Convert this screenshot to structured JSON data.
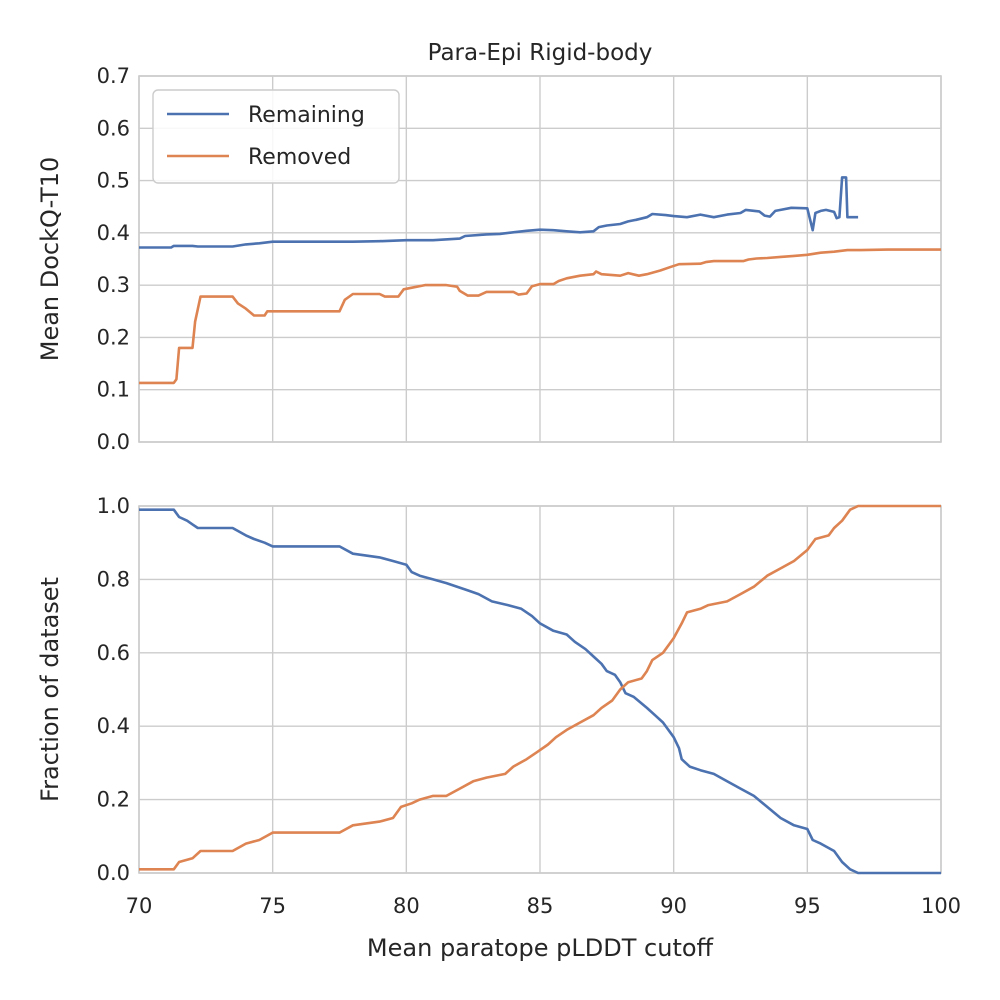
{
  "chart_data": [
    {
      "type": "line",
      "title": "Para-Epi Rigid-body",
      "xlabel": "",
      "ylabel": "Mean DockQ-T10",
      "xlim": [
        70,
        100
      ],
      "ylim": [
        0,
        0.7
      ],
      "xticks": [
        70,
        75,
        80,
        85,
        90,
        95,
        100
      ],
      "yticks": [
        "0.0",
        "0.1",
        "0.2",
        "0.3",
        "0.4",
        "0.5",
        "0.6",
        "0.7"
      ],
      "show_xtick_labels": false,
      "grid": true,
      "legend": {
        "position": "top-left",
        "entries": [
          "Remaining",
          "Removed"
        ]
      },
      "series": [
        {
          "name": "Remaining",
          "color": "#4c72b0",
          "points": [
            [
              70,
              0.372
            ],
            [
              71.2,
              0.372
            ],
            [
              71.3,
              0.375
            ],
            [
              72,
              0.375
            ],
            [
              72.2,
              0.374
            ],
            [
              73.5,
              0.374
            ],
            [
              74,
              0.378
            ],
            [
              74.5,
              0.38
            ],
            [
              75,
              0.383
            ],
            [
              76,
              0.383
            ],
            [
              77,
              0.383
            ],
            [
              78,
              0.383
            ],
            [
              79,
              0.384
            ],
            [
              80,
              0.386
            ],
            [
              81,
              0.386
            ],
            [
              82,
              0.389
            ],
            [
              82.2,
              0.394
            ],
            [
              83,
              0.397
            ],
            [
              83.5,
              0.398
            ],
            [
              84,
              0.401
            ],
            [
              84.5,
              0.404
            ],
            [
              85,
              0.406
            ],
            [
              85.5,
              0.405
            ],
            [
              86,
              0.403
            ],
            [
              86.5,
              0.401
            ],
            [
              87,
              0.403
            ],
            [
              87.2,
              0.411
            ],
            [
              87.5,
              0.414
            ],
            [
              88,
              0.417
            ],
            [
              88.3,
              0.422
            ],
            [
              88.6,
              0.425
            ],
            [
              89,
              0.43
            ],
            [
              89.2,
              0.436
            ],
            [
              89.7,
              0.434
            ],
            [
              90,
              0.432
            ],
            [
              90.5,
              0.43
            ],
            [
              91,
              0.435
            ],
            [
              91.5,
              0.43
            ],
            [
              92,
              0.435
            ],
            [
              92.5,
              0.438
            ],
            [
              92.7,
              0.444
            ],
            [
              93.2,
              0.441
            ],
            [
              93.4,
              0.433
            ],
            [
              93.6,
              0.431
            ],
            [
              93.8,
              0.442
            ],
            [
              94,
              0.444
            ],
            [
              94.4,
              0.448
            ],
            [
              95,
              0.447
            ],
            [
              95.2,
              0.405
            ],
            [
              95.3,
              0.438
            ],
            [
              95.5,
              0.442
            ],
            [
              95.7,
              0.444
            ],
            [
              96,
              0.44
            ],
            [
              96.1,
              0.428
            ],
            [
              96.2,
              0.43
            ],
            [
              96.3,
              0.506
            ],
            [
              96.45,
              0.506
            ],
            [
              96.5,
              0.43
            ],
            [
              96.9,
              0.43
            ]
          ]
        },
        {
          "name": "Removed",
          "color": "#dd8452",
          "points": [
            [
              70,
              0.113
            ],
            [
              71.3,
              0.113
            ],
            [
              71.4,
              0.12
            ],
            [
              71.5,
              0.18
            ],
            [
              72,
              0.18
            ],
            [
              72.1,
              0.23
            ],
            [
              72.3,
              0.278
            ],
            [
              73.5,
              0.278
            ],
            [
              73.7,
              0.265
            ],
            [
              74,
              0.255
            ],
            [
              74.3,
              0.242
            ],
            [
              74.7,
              0.242
            ],
            [
              74.8,
              0.25
            ],
            [
              77.5,
              0.25
            ],
            [
              77.7,
              0.272
            ],
            [
              78,
              0.283
            ],
            [
              79,
              0.283
            ],
            [
              79.2,
              0.278
            ],
            [
              79.7,
              0.278
            ],
            [
              79.9,
              0.292
            ],
            [
              80.3,
              0.296
            ],
            [
              80.7,
              0.3
            ],
            [
              81.5,
              0.3
            ],
            [
              81.9,
              0.297
            ],
            [
              82,
              0.289
            ],
            [
              82.3,
              0.28
            ],
            [
              82.7,
              0.28
            ],
            [
              83,
              0.287
            ],
            [
              84,
              0.287
            ],
            [
              84.2,
              0.282
            ],
            [
              84.5,
              0.284
            ],
            [
              84.7,
              0.298
            ],
            [
              85,
              0.302
            ],
            [
              85.5,
              0.302
            ],
            [
              85.7,
              0.308
            ],
            [
              86,
              0.313
            ],
            [
              86.5,
              0.318
            ],
            [
              87,
              0.321
            ],
            [
              87.1,
              0.326
            ],
            [
              87.3,
              0.321
            ],
            [
              88,
              0.318
            ],
            [
              88.3,
              0.323
            ],
            [
              88.7,
              0.318
            ],
            [
              89,
              0.321
            ],
            [
              89.5,
              0.328
            ],
            [
              89.9,
              0.335
            ],
            [
              90.2,
              0.34
            ],
            [
              91,
              0.341
            ],
            [
              91.2,
              0.344
            ],
            [
              91.5,
              0.346
            ],
            [
              92,
              0.346
            ],
            [
              92.6,
              0.346
            ],
            [
              92.8,
              0.349
            ],
            [
              93.1,
              0.351
            ],
            [
              93.5,
              0.352
            ],
            [
              94,
              0.354
            ],
            [
              94.5,
              0.356
            ],
            [
              95,
              0.358
            ],
            [
              95.5,
              0.362
            ],
            [
              96,
              0.364
            ],
            [
              96.5,
              0.367
            ],
            [
              97,
              0.367
            ],
            [
              98,
              0.368
            ],
            [
              99,
              0.368
            ],
            [
              100,
              0.368
            ]
          ]
        }
      ]
    },
    {
      "type": "line",
      "title": "",
      "xlabel": "Mean paratope pLDDT cutoff",
      "ylabel": "Fraction of dataset",
      "xlim": [
        70,
        100
      ],
      "ylim": [
        0,
        1
      ],
      "xticks": [
        70,
        75,
        80,
        85,
        90,
        95,
        100
      ],
      "yticks": [
        "0.0",
        "0.2",
        "0.4",
        "0.6",
        "0.8",
        "1.0"
      ],
      "show_xtick_labels": true,
      "grid": true,
      "series": [
        {
          "name": "Remaining",
          "color": "#4c72b0",
          "points": [
            [
              70,
              0.99
            ],
            [
              71.3,
              0.99
            ],
            [
              71.5,
              0.97
            ],
            [
              71.8,
              0.96
            ],
            [
              72,
              0.95
            ],
            [
              72.2,
              0.94
            ],
            [
              73.5,
              0.94
            ],
            [
              74,
              0.92
            ],
            [
              74.3,
              0.91
            ],
            [
              74.7,
              0.9
            ],
            [
              75,
              0.89
            ],
            [
              77.5,
              0.89
            ],
            [
              78,
              0.87
            ],
            [
              79,
              0.86
            ],
            [
              79.5,
              0.85
            ],
            [
              80,
              0.84
            ],
            [
              80.2,
              0.82
            ],
            [
              80.5,
              0.81
            ],
            [
              81,
              0.8
            ],
            [
              81.5,
              0.79
            ],
            [
              82.3,
              0.77
            ],
            [
              82.7,
              0.76
            ],
            [
              83.2,
              0.74
            ],
            [
              83.8,
              0.73
            ],
            [
              84.3,
              0.72
            ],
            [
              84.7,
              0.7
            ],
            [
              85,
              0.68
            ],
            [
              85.5,
              0.66
            ],
            [
              86,
              0.65
            ],
            [
              86.3,
              0.63
            ],
            [
              86.7,
              0.61
            ],
            [
              87,
              0.59
            ],
            [
              87.3,
              0.57
            ],
            [
              87.5,
              0.55
            ],
            [
              87.8,
              0.54
            ],
            [
              88,
              0.52
            ],
            [
              88.2,
              0.49
            ],
            [
              88.5,
              0.48
            ],
            [
              89,
              0.45
            ],
            [
              89.3,
              0.43
            ],
            [
              89.6,
              0.41
            ],
            [
              90,
              0.37
            ],
            [
              90.2,
              0.34
            ],
            [
              90.3,
              0.31
            ],
            [
              90.6,
              0.29
            ],
            [
              91,
              0.28
            ],
            [
              91.5,
              0.27
            ],
            [
              92,
              0.25
            ],
            [
              92.5,
              0.23
            ],
            [
              93,
              0.21
            ],
            [
              93.5,
              0.18
            ],
            [
              94,
              0.15
            ],
            [
              94.5,
              0.13
            ],
            [
              95,
              0.12
            ],
            [
              95.2,
              0.09
            ],
            [
              95.5,
              0.08
            ],
            [
              96,
              0.06
            ],
            [
              96.3,
              0.03
            ],
            [
              96.6,
              0.01
            ],
            [
              96.9,
              0.0
            ],
            [
              100,
              0.0
            ]
          ]
        },
        {
          "name": "Removed",
          "color": "#dd8452",
          "points": [
            [
              70,
              0.01
            ],
            [
              71.3,
              0.01
            ],
            [
              71.5,
              0.03
            ],
            [
              72,
              0.04
            ],
            [
              72.3,
              0.06
            ],
            [
              73.5,
              0.06
            ],
            [
              74,
              0.08
            ],
            [
              74.5,
              0.09
            ],
            [
              75,
              0.11
            ],
            [
              77.5,
              0.11
            ],
            [
              78,
              0.13
            ],
            [
              79,
              0.14
            ],
            [
              79.5,
              0.15
            ],
            [
              79.8,
              0.18
            ],
            [
              80.2,
              0.19
            ],
            [
              80.5,
              0.2
            ],
            [
              81,
              0.21
            ],
            [
              81.5,
              0.21
            ],
            [
              82,
              0.23
            ],
            [
              82.5,
              0.25
            ],
            [
              83,
              0.26
            ],
            [
              83.7,
              0.27
            ],
            [
              84,
              0.29
            ],
            [
              84.5,
              0.31
            ],
            [
              84.9,
              0.33
            ],
            [
              85.3,
              0.35
            ],
            [
              85.6,
              0.37
            ],
            [
              86,
              0.39
            ],
            [
              86.5,
              0.41
            ],
            [
              87,
              0.43
            ],
            [
              87.3,
              0.45
            ],
            [
              87.7,
              0.47
            ],
            [
              88,
              0.5
            ],
            [
              88.3,
              0.52
            ],
            [
              88.8,
              0.53
            ],
            [
              89,
              0.55
            ],
            [
              89.2,
              0.58
            ],
            [
              89.6,
              0.6
            ],
            [
              90,
              0.64
            ],
            [
              90.3,
              0.68
            ],
            [
              90.5,
              0.71
            ],
            [
              91,
              0.72
            ],
            [
              91.3,
              0.73
            ],
            [
              92,
              0.74
            ],
            [
              92.5,
              0.76
            ],
            [
              93,
              0.78
            ],
            [
              93.5,
              0.81
            ],
            [
              94,
              0.83
            ],
            [
              94.5,
              0.85
            ],
            [
              95,
              0.88
            ],
            [
              95.3,
              0.91
            ],
            [
              95.8,
              0.92
            ],
            [
              96,
              0.94
            ],
            [
              96.3,
              0.96
            ],
            [
              96.6,
              0.99
            ],
            [
              96.9,
              1.0
            ],
            [
              100,
              1.0
            ]
          ]
        }
      ]
    }
  ]
}
